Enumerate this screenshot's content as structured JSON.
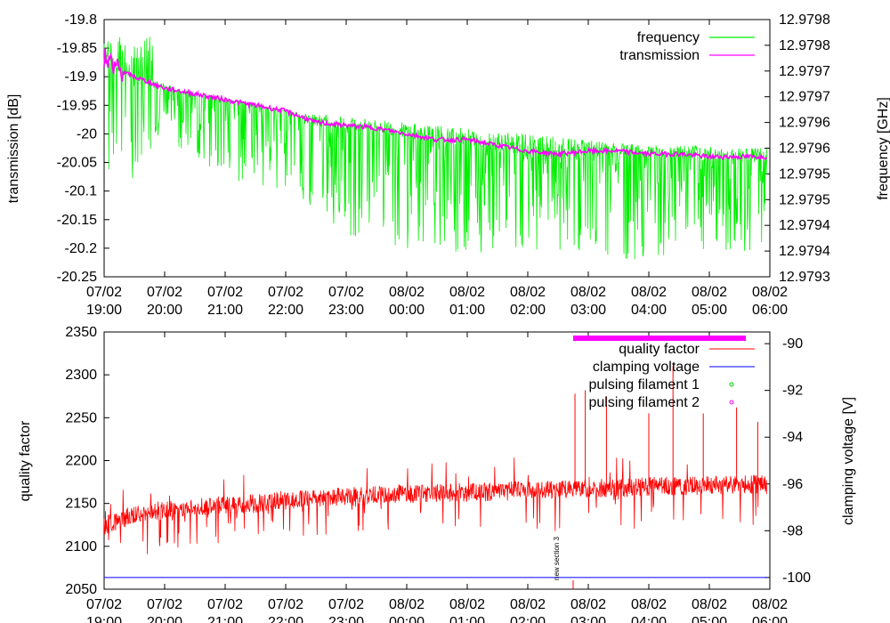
{
  "chart_data": [
    {
      "type": "line",
      "xlabel": "",
      "ylabel": "transmission [dB]",
      "y2label": "frequency [GHz]",
      "x_ticks": [
        {
          "top": "07/02",
          "bottom": "19:00"
        },
        {
          "top": "07/02",
          "bottom": "20:00"
        },
        {
          "top": "07/02",
          "bottom": "21:00"
        },
        {
          "top": "07/02",
          "bottom": "22:00"
        },
        {
          "top": "07/02",
          "bottom": "23:00"
        },
        {
          "top": "08/02",
          "bottom": "00:00"
        },
        {
          "top": "08/02",
          "bottom": "01:00"
        },
        {
          "top": "08/02",
          "bottom": "02:00"
        },
        {
          "top": "08/02",
          "bottom": "03:00"
        },
        {
          "top": "08/02",
          "bottom": "04:00"
        },
        {
          "top": "08/02",
          "bottom": "05:00"
        },
        {
          "top": "08/02",
          "bottom": "06:00"
        }
      ],
      "xlim_hours": [
        0,
        11
      ],
      "ylim": [
        -20.25,
        -19.8
      ],
      "y_ticks": [
        "-19.8",
        "-19.85",
        "-19.9",
        "-19.95",
        "-20",
        "-20.05",
        "-20.1",
        "-20.15",
        "-20.2",
        "-20.25"
      ],
      "y2_ticks": [
        "12.9798",
        "12.9798",
        "12.9797",
        "12.9797",
        "12.9796",
        "12.9796",
        "12.9795",
        "12.9795",
        "12.9794",
        "12.9794",
        "12.9793"
      ],
      "legend_position": "top-right",
      "series": [
        {
          "name": "frequency",
          "color": "#00ee00",
          "axis": "left-equivalent",
          "note_style": "noisy band",
          "x_hours": [
            0,
            0.5,
            1,
            1.5,
            2,
            3,
            4,
            5,
            6,
            7,
            8,
            9,
            10,
            11
          ],
          "upper_envelope": [
            -19.88,
            -19.9,
            -19.91,
            -19.93,
            -19.94,
            -19.96,
            -19.97,
            -19.98,
            -19.99,
            -20.0,
            -20.01,
            -20.02,
            -20.02,
            -20.02
          ],
          "lower_envelope": [
            -20.1,
            -20.08,
            -20.0,
            -20.05,
            -20.08,
            -20.1,
            -20.18,
            -20.2,
            -20.21,
            -20.2,
            -20.22,
            -20.22,
            -20.22,
            -20.2
          ]
        },
        {
          "name": "transmission",
          "color": "#ff00ff",
          "x_hours": [
            0,
            0.25,
            0.5,
            0.75,
            1,
            1.5,
            2,
            2.5,
            3,
            3.5,
            4,
            4.5,
            5,
            5.5,
            6,
            6.5,
            7,
            7.5,
            8,
            8.5,
            9,
            9.5,
            10,
            10.5,
            10.95
          ],
          "values": [
            -19.86,
            -19.89,
            -19.9,
            -19.91,
            -19.92,
            -19.93,
            -19.94,
            -19.95,
            -19.96,
            -19.98,
            -19.985,
            -19.99,
            -20.0,
            -20.01,
            -20.01,
            -20.02,
            -20.03,
            -20.035,
            -20.03,
            -20.03,
            -20.035,
            -20.035,
            -20.04,
            -20.04,
            -20.04
          ]
        }
      ]
    },
    {
      "type": "line",
      "ylabel": "quality factor",
      "y2label": "clamping voltage [V]",
      "x_ticks": [
        {
          "top": "07/02",
          "bottom": "19:00"
        },
        {
          "top": "07/02",
          "bottom": "20:00"
        },
        {
          "top": "07/02",
          "bottom": "21:00"
        },
        {
          "top": "07/02",
          "bottom": "22:00"
        },
        {
          "top": "07/02",
          "bottom": "23:00"
        },
        {
          "top": "08/02",
          "bottom": "00:00"
        },
        {
          "top": "08/02",
          "bottom": "01:00"
        },
        {
          "top": "08/02",
          "bottom": "02:00"
        },
        {
          "top": "08/02",
          "bottom": "03:00"
        },
        {
          "top": "08/02",
          "bottom": "04:00"
        },
        {
          "top": "08/02",
          "bottom": "05:00"
        },
        {
          "top": "08/02",
          "bottom": "06:00"
        }
      ],
      "xlim_hours": [
        0,
        11
      ],
      "ylim": [
        2050,
        2350
      ],
      "y_ticks": [
        "2350",
        "2300",
        "2250",
        "2200",
        "2150",
        "2100",
        "2050"
      ],
      "y2lim": [
        -100.5,
        -89.5
      ],
      "y2_ticks": [
        "-90",
        "-92",
        "-94",
        "-96",
        "-98",
        "-100"
      ],
      "legend_position": "top-right",
      "annotation": {
        "text": "new section 3",
        "x_hours": 7.75
      },
      "highlight_bar": {
        "color": "#ff00ff",
        "x_hours": [
          7.75,
          11.0
        ]
      },
      "series": [
        {
          "name": "quality factor",
          "color": "#ff0000",
          "x_hours": [
            0,
            0.25,
            0.5,
            1,
            1.5,
            2,
            2.5,
            3,
            3.5,
            4,
            4.5,
            5,
            5.5,
            6,
            6.5,
            7,
            7.5,
            8,
            8.5,
            9,
            9.5,
            10,
            10.5,
            10.95
          ],
          "values": [
            2125,
            2130,
            2138,
            2142,
            2145,
            2148,
            2150,
            2154,
            2156,
            2158,
            2160,
            2162,
            2162,
            2163,
            2164,
            2165,
            2166,
            2168,
            2168,
            2170,
            2170,
            2171,
            2172,
            2172
          ],
          "spikes": [
            {
              "x_hours": 7.78,
              "value": 2278
            },
            {
              "x_hours": 7.95,
              "value": 2282
            },
            {
              "x_hours": 8.3,
              "value": 2275
            },
            {
              "x_hours": 9.0,
              "value": 2255
            },
            {
              "x_hours": 9.4,
              "value": 2310
            },
            {
              "x_hours": 9.9,
              "value": 2255
            },
            {
              "x_hours": 10.45,
              "value": 2262
            },
            {
              "x_hours": 10.8,
              "value": 2245
            }
          ]
        },
        {
          "name": "clamping voltage",
          "color": "#0000ff",
          "x_hours": [
            0,
            10.95
          ],
          "values": [
            -100,
            -100
          ]
        },
        {
          "name": "pulsing filament 1",
          "color": "#00cc00",
          "x_hours": [],
          "values": []
        },
        {
          "name": "pulsing filament 2",
          "color": "#ff00ff",
          "x_hours": [],
          "values": []
        }
      ]
    }
  ]
}
